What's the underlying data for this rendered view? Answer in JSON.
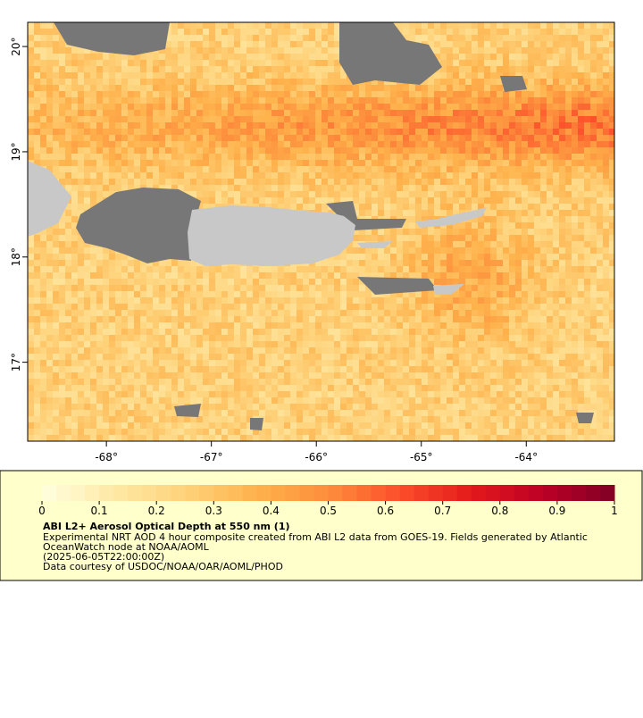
{
  "chart_data": {
    "type": "map",
    "title": "ABI L2+ Aerosol Optical Depth at 550 nm (1)",
    "notes": [
      "Experimental NRT AOD 4 hour composite created from ABI L2 data from GOES-19. Fields generated by Atlantic",
      "OceanWatch node at NOAA/AOML",
      "(2025-06-05T22:00:00Z)",
      "Data courtesy of USDOC/NOAA/OAR/AOML/PHOD"
    ],
    "xlim": [
      -68.75,
      -63.16
    ],
    "ylim": [
      16.25,
      20.23
    ],
    "xticks": [
      {
        "value": -68,
        "label": "-68°"
      },
      {
        "value": -67,
        "label": "-67°"
      },
      {
        "value": -66,
        "label": "-66°"
      },
      {
        "value": -65,
        "label": "-65°"
      },
      {
        "value": -64,
        "label": "-64°"
      }
    ],
    "yticks": [
      {
        "value": 17,
        "label": "17°"
      },
      {
        "value": 18,
        "label": "18°"
      },
      {
        "value": 19,
        "label": "19°"
      },
      {
        "value": 20,
        "label": "20°"
      }
    ],
    "colorbar": {
      "lim": [
        0,
        1
      ],
      "ticks": [
        0,
        0.1,
        0.2,
        0.3,
        0.4,
        0.5,
        0.6,
        0.7,
        0.8,
        0.9,
        1
      ],
      "colors": [
        "#ffffe0",
        "#fee9a5",
        "#fed27a",
        "#feb24c",
        "#fd8d3c",
        "#fc4e2a",
        "#e31a1c",
        "#bd0026",
        "#800026"
      ]
    }
  }
}
